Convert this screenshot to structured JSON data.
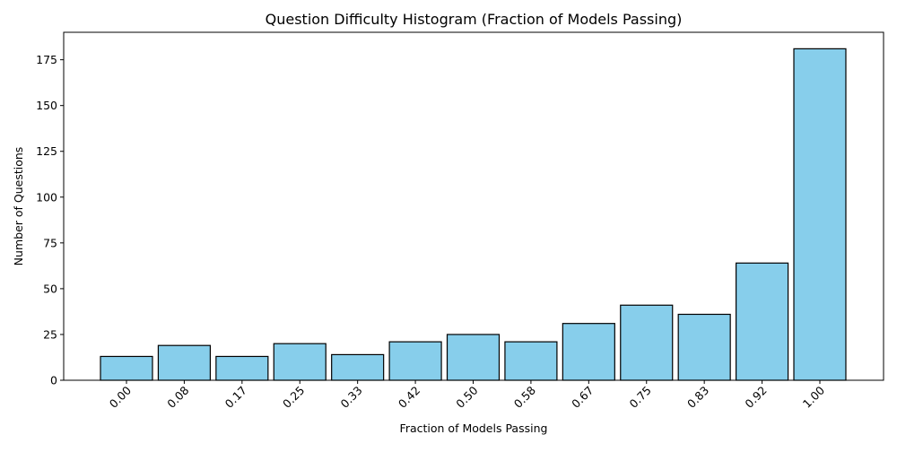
{
  "chart_data": {
    "type": "bar",
    "title": "Question Difficulty Histogram (Fraction of Models Passing)",
    "xlabel": "Fraction of Models Passing",
    "ylabel": "Number of Questions",
    "categories": [
      "0.00",
      "0.08",
      "0.17",
      "0.25",
      "0.33",
      "0.42",
      "0.50",
      "0.58",
      "0.67",
      "0.75",
      "0.83",
      "0.92",
      "1.00"
    ],
    "values": [
      13,
      19,
      13,
      20,
      14,
      21,
      25,
      21,
      31,
      41,
      36,
      64,
      181
    ],
    "ylim": [
      0,
      190
    ],
    "yticks": [
      0,
      25,
      50,
      75,
      100,
      125,
      150,
      175
    ],
    "bar_color": "#87ceeb",
    "bar_edge_color": "#000000",
    "grid": false,
    "xtick_rotation_deg": 45
  }
}
